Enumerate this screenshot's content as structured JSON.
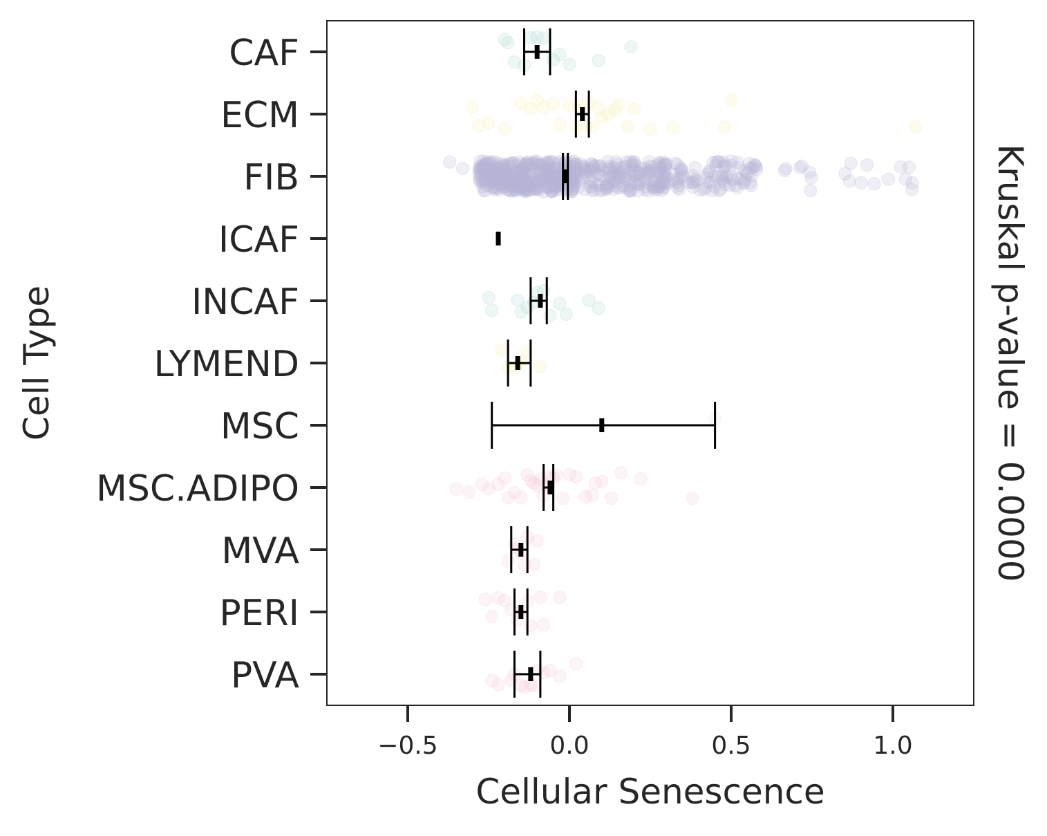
{
  "chart_data": {
    "type": "scatter",
    "subtype": "strip plot with mean and error bars",
    "xlabel": "Cellular Senescence",
    "ylabel": "Cell Type",
    "right_label": "Kruskal p-value = 0.0000",
    "xlim": [
      -0.75,
      1.25
    ],
    "xticks": [
      -0.5,
      0.0,
      0.5,
      1.0
    ],
    "xtick_labels": [
      "−0.5",
      "0.0",
      "0.5",
      "1.0"
    ],
    "grid": false,
    "legend": "none",
    "categories": [
      "CAF",
      "ECM",
      "FIB",
      "ICAF",
      "INCAF",
      "LYMEND",
      "MSC",
      "MSC.ADIPO",
      "MVA",
      "PERI",
      "PVA"
    ],
    "series": [
      {
        "category": "CAF",
        "color": "#9fd5c9",
        "mean": -0.1,
        "ci": [
          -0.14,
          -0.06
        ],
        "points": [
          -0.2,
          -0.17,
          -0.14,
          -0.12,
          -0.1,
          -0.08,
          -0.05,
          -0.03,
          0.0,
          0.09,
          0.19,
          -0.19
        ]
      },
      {
        "category": "ECM",
        "color": "#f2f0a6",
        "mean": 0.04,
        "ci": [
          0.02,
          0.06
        ],
        "points": [
          -0.3,
          -0.25,
          -0.2,
          -0.15,
          -0.12,
          -0.1,
          -0.08,
          -0.05,
          -0.03,
          0.0,
          0.02,
          0.03,
          0.05,
          0.07,
          0.09,
          0.1,
          0.12,
          0.15,
          0.18,
          0.2,
          0.25,
          0.32,
          0.48,
          0.5,
          1.07,
          -0.28,
          0.14,
          0.06
        ]
      },
      {
        "category": "FIB",
        "color": "#b8b4d6",
        "mean": -0.01,
        "ci": [
          -0.02,
          -0.005
        ],
        "points": []
      },
      {
        "category": "ICAF",
        "color": "#9fd5c9",
        "mean": -0.22,
        "ci": [
          -0.225,
          -0.215
        ],
        "points": []
      },
      {
        "category": "INCAF",
        "color": "#9fd5c9",
        "mean": -0.09,
        "ci": [
          -0.12,
          -0.07
        ],
        "points": [
          -0.25,
          -0.24,
          -0.16,
          -0.15,
          -0.13,
          -0.11,
          -0.1,
          -0.08,
          -0.06,
          -0.03,
          -0.01,
          0.06,
          0.09
        ]
      },
      {
        "category": "LYMEND",
        "color": "#f2f0a6",
        "mean": -0.16,
        "ci": [
          -0.19,
          -0.12
        ],
        "points": [
          -0.21,
          -0.19,
          -0.17,
          -0.15,
          -0.13,
          -0.09
        ]
      },
      {
        "category": "MSC",
        "color": "#e0e0e0",
        "mean": 0.1,
        "ci": [
          -0.24,
          0.45
        ],
        "points": [
          0.45
        ]
      },
      {
        "category": "MSC.ADIPO",
        "color": "#f2c0d4",
        "mean": -0.06,
        "ci": [
          -0.08,
          -0.05
        ],
        "points": [
          -0.35,
          -0.31,
          -0.27,
          -0.25,
          -0.22,
          -0.2,
          -0.19,
          -0.17,
          -0.15,
          -0.13,
          -0.12,
          -0.11,
          -0.1,
          -0.09,
          -0.08,
          -0.07,
          -0.06,
          -0.05,
          -0.04,
          -0.02,
          0.0,
          0.02,
          0.05,
          0.07,
          0.08,
          0.1,
          0.13,
          0.16,
          0.22,
          0.38
        ]
      },
      {
        "category": "MVA",
        "color": "#f2c0d4",
        "mean": -0.15,
        "ci": [
          -0.18,
          -0.13
        ],
        "points": [
          -0.19,
          -0.17,
          -0.16,
          -0.15,
          -0.14,
          -0.13,
          -0.11,
          -0.1
        ]
      },
      {
        "category": "PERI",
        "color": "#f2c0d4",
        "mean": -0.15,
        "ci": [
          -0.17,
          -0.13
        ],
        "points": [
          -0.26,
          -0.24,
          -0.22,
          -0.2,
          -0.18,
          -0.16,
          -0.15,
          -0.13,
          -0.12,
          -0.09,
          -0.08,
          -0.03
        ]
      },
      {
        "category": "PVA",
        "color": "#f2c0d4",
        "mean": -0.12,
        "ci": [
          -0.17,
          -0.09
        ],
        "points": [
          -0.24,
          -0.22,
          -0.18,
          -0.17,
          -0.15,
          -0.14,
          -0.12,
          -0.11,
          -0.1,
          -0.08,
          -0.06,
          -0.03,
          0.02
        ]
      }
    ]
  }
}
